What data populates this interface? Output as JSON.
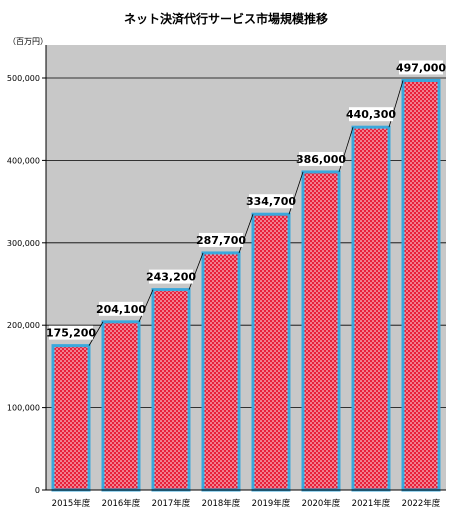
{
  "chart_data": {
    "type": "bar",
    "title": "ネット決済代行サービス市場規模推移",
    "unit_label": "（百万円）",
    "categories": [
      "2015年度",
      "2016年度",
      "2017年度",
      "2018年度",
      "2019年度",
      "2020年度",
      "2021年度",
      "2022年度"
    ],
    "values": [
      175200,
      204100,
      243200,
      287700,
      334700,
      386000,
      440300,
      497000
    ],
    "value_labels": [
      "175,200",
      "204,100",
      "243,200",
      "287,700",
      "334,700",
      "386,000",
      "440,300",
      "497,000"
    ],
    "ylim": [
      0,
      500000
    ],
    "yticks": [
      0,
      100000,
      200000,
      300000,
      400000,
      500000
    ],
    "ytick_labels": [
      "0",
      "100,000",
      "200,000",
      "300,000",
      "400,000",
      "500,000"
    ],
    "grid": true,
    "connector_lines": true,
    "colors": {
      "plot_background": "#c8c8c8",
      "bar_fill": "#e8203a",
      "bar_pattern_dots": "#ffffff",
      "bar_border": "#3aa8dc",
      "gridline": "#000000",
      "connector": "#000000"
    }
  }
}
